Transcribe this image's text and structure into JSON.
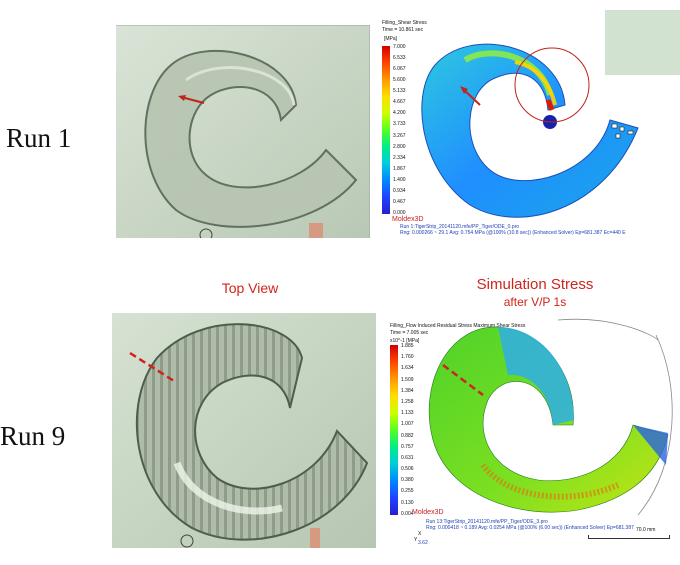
{
  "labels": {
    "run1": "Run 1",
    "run9": "Run 9",
    "top_view": "Top View",
    "sim_title": "Simulation Stress",
    "sim_subtitle": "after V/P 1s"
  },
  "sim1": {
    "title": "Filling_Shear Stress",
    "time": "Time = 10.861 sec",
    "unit": "[MPa]",
    "ticks": [
      "7.000",
      "6.533",
      "6.067",
      "5.600",
      "5.133",
      "4.667",
      "4.200",
      "3.733",
      "3.267",
      "2.800",
      "2.334",
      "1.867",
      "1.400",
      "0.934",
      "0.467",
      "0.000"
    ],
    "brand": "Moldex3D",
    "foot1": "Run 1:TigerStrip_20141120.mfe/PP_Tiger/ODE_0.pro",
    "foot2": "Rng: 0.000266 ~ 29.1  Avg: 0.754 MPa  (@100% (10.8 sec)) (Enhanced Solver) Ep=681.387 Ec=440 E"
  },
  "sim2": {
    "title": "Filling_Flow Induced Residual Stress Maximum Shear Stress",
    "time": "Time = 7.005 sec",
    "unit": "x10^-1 [MPa]",
    "ticks": [
      "1.885",
      "1.760",
      "1.634",
      "1.509",
      "1.384",
      "1.258",
      "1.133",
      "1.007",
      "0.882",
      "0.757",
      "0.631",
      "0.506",
      "0.380",
      "0.255",
      "0.130",
      "0.004"
    ],
    "brand": "Moldex3D",
    "foot1": "Run 13:TigerStrip_20141120.mfe/PP_Tiger/ODE_3.pro",
    "foot2": "Rng: 0.000418 ~ 0.189  Avg: 0.0254 MPa  (@100% (6.00 sec)) (Enhanced Solver) Ep=681.387",
    "scale": "70.0 mm",
    "axis_x": "X",
    "axis_y": "Y",
    "scale_val": "3.62"
  }
}
